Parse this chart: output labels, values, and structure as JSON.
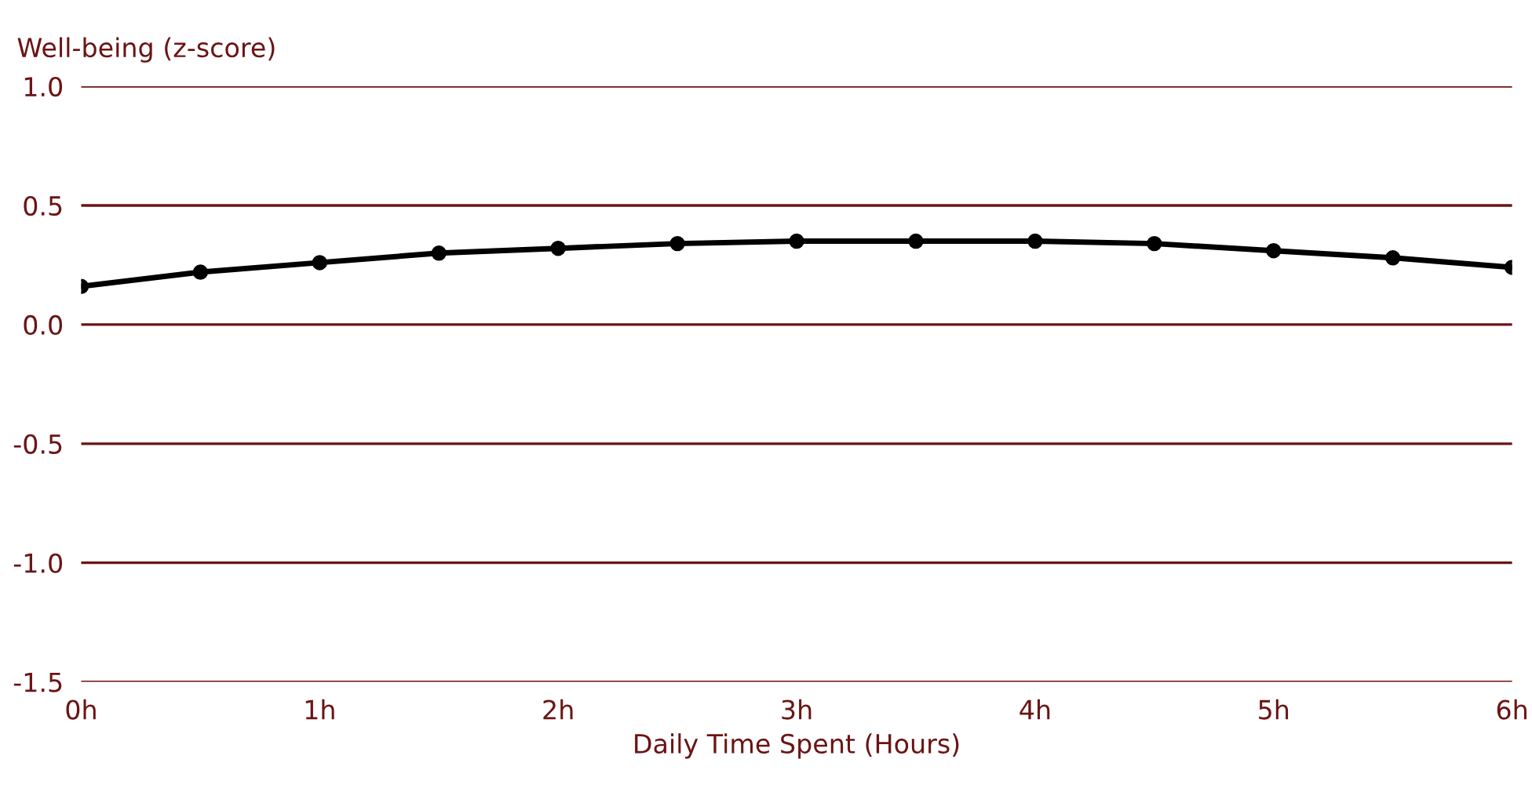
{
  "chart_data": {
    "type": "line",
    "xlabel": "Daily Time Spent (Hours)",
    "ylabel": "Well-being (z-score)",
    "x": [
      0,
      0.5,
      1,
      1.5,
      2,
      2.5,
      3,
      3.5,
      4,
      4.5,
      5,
      5.5,
      6
    ],
    "series": [
      {
        "color": "#000000",
        "values": [
          0.16,
          0.22,
          0.26,
          0.3,
          0.32,
          0.34,
          0.35,
          0.35,
          0.35,
          0.34,
          0.31,
          0.28,
          0.24
        ]
      }
    ],
    "xlim": [
      0,
      6
    ],
    "xticks": [
      {
        "value": 0,
        "label": "0h"
      },
      {
        "value": 1,
        "label": "1h"
      },
      {
        "value": 2,
        "label": "2h"
      },
      {
        "value": 3,
        "label": "3h"
      },
      {
        "value": 4,
        "label": "4h"
      },
      {
        "value": 5,
        "label": "5h"
      },
      {
        "value": 6,
        "label": "6h"
      }
    ],
    "ylim": [
      -1.5,
      1.0
    ],
    "yticks": [
      {
        "value": -1.5,
        "label": "-1.5"
      },
      {
        "value": -1.0,
        "label": "-1.0"
      },
      {
        "value": -0.5,
        "label": "-0.5"
      },
      {
        "value": 0.0,
        "label": "0.0"
      },
      {
        "value": 0.5,
        "label": "0.5"
      },
      {
        "value": 1.0,
        "label": "1.0"
      }
    ],
    "grid": "y",
    "marker": "circle",
    "line_style": "solid"
  }
}
